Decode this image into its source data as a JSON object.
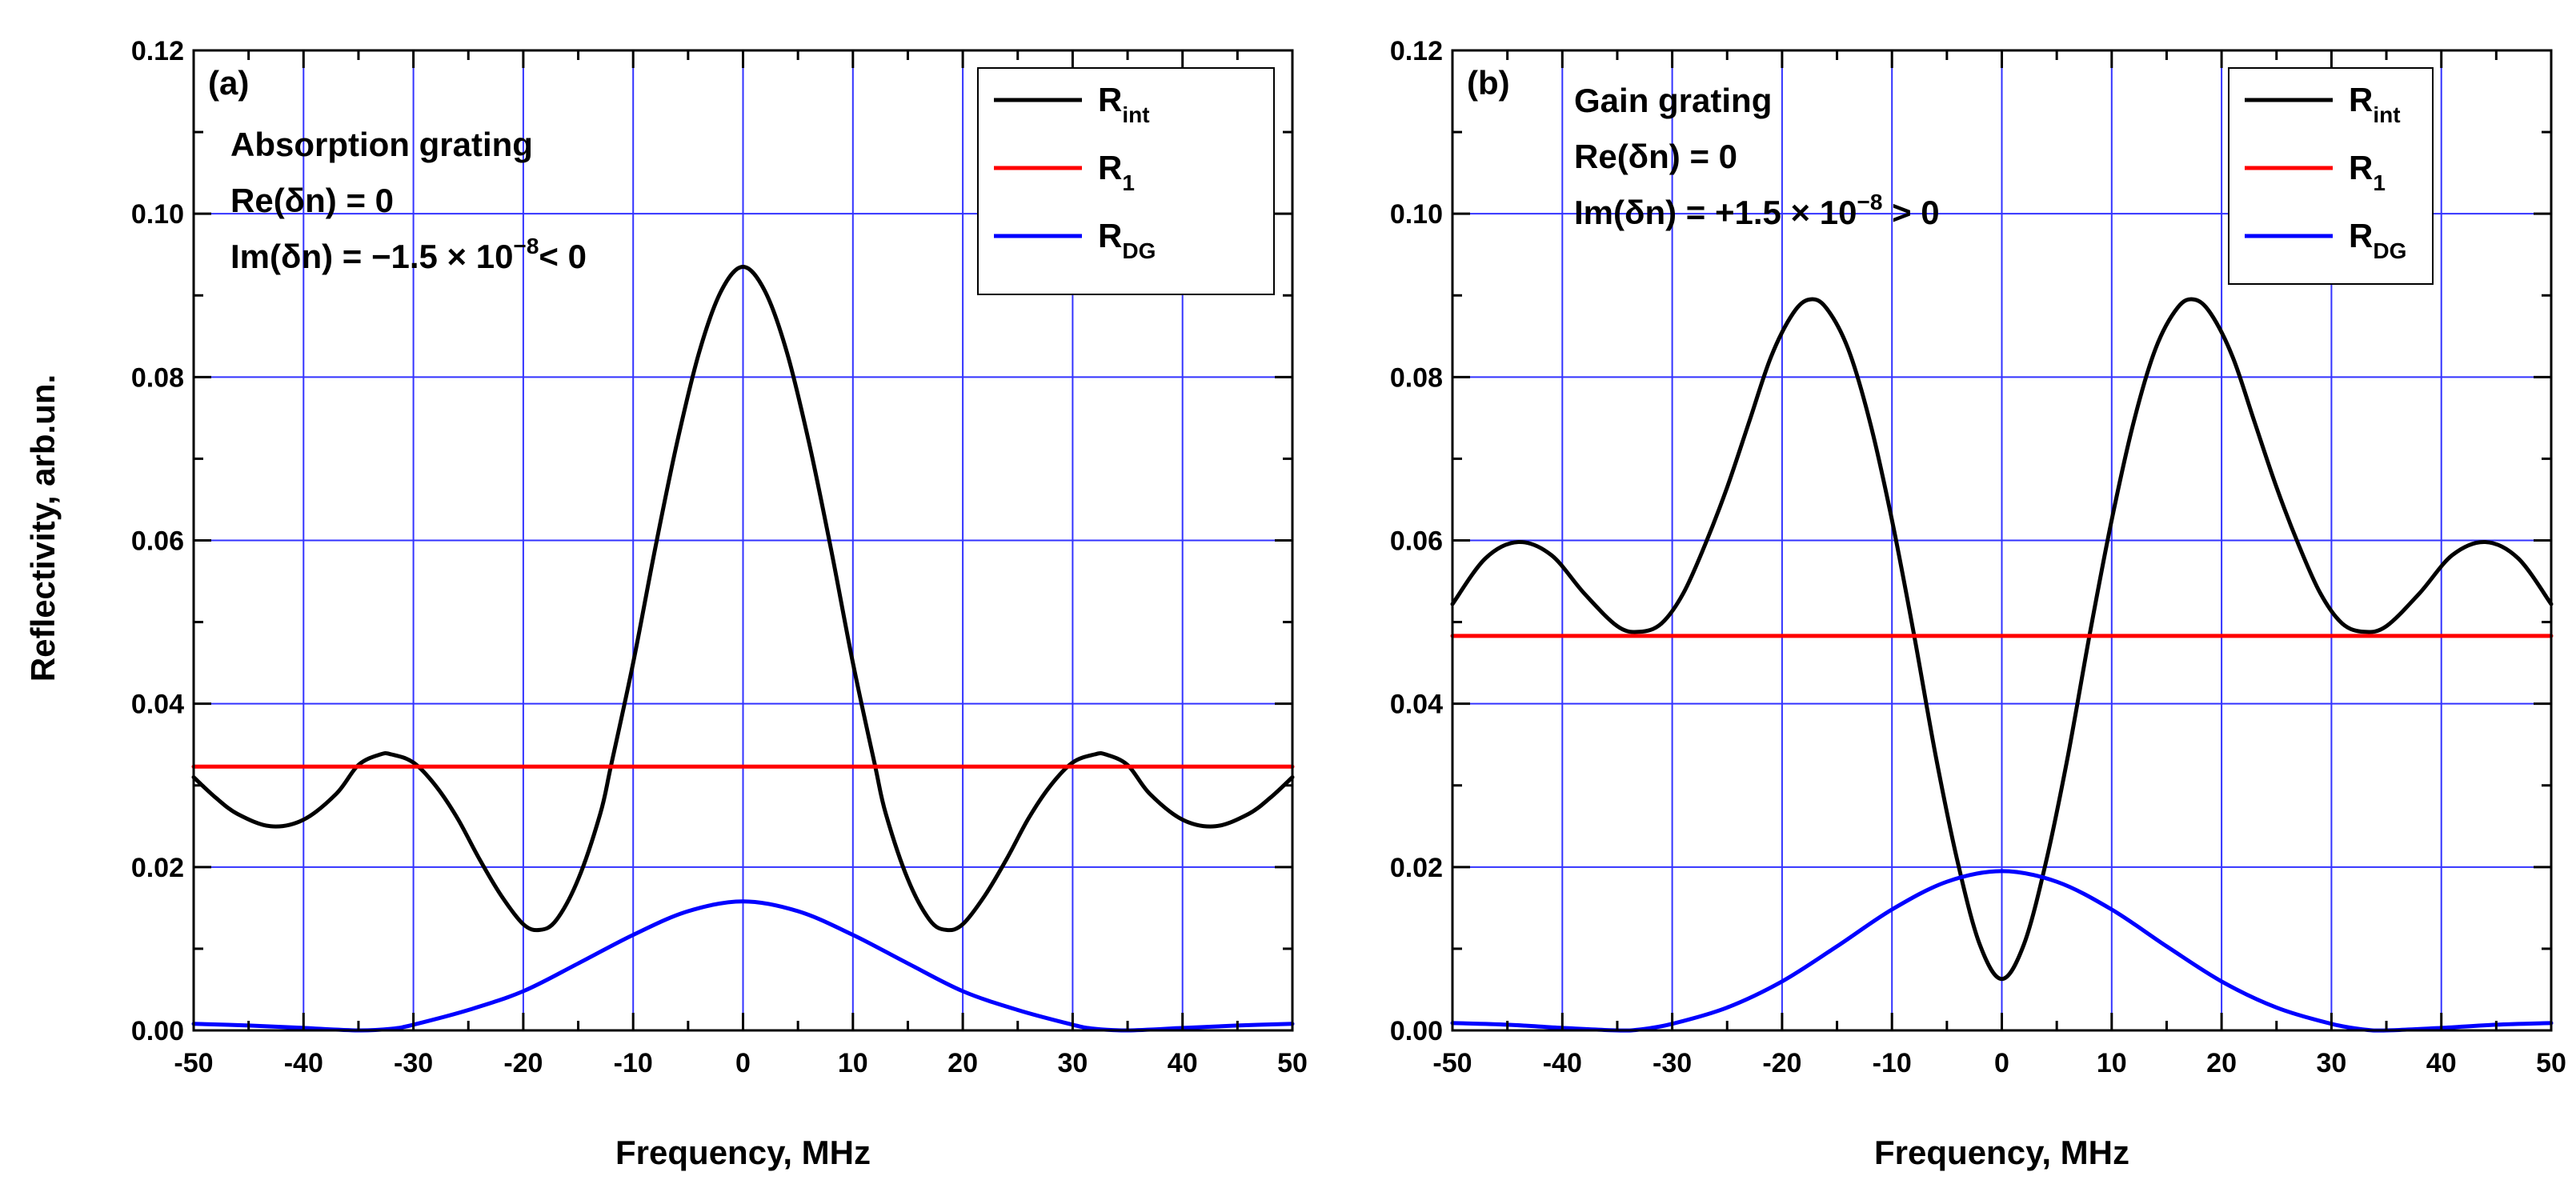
{
  "figure": {
    "ylabel": "Reflectivity, arb.un.",
    "colors": {
      "axes": "#000000",
      "grid": "#3333ff",
      "R_int": "#000000",
      "R_1": "#ff0000",
      "R_DG": "#0000ff"
    }
  },
  "chart_data": [
    {
      "type": "line",
      "panel_label": "(a)",
      "annotation_lines": [
        {
          "text": "Absorption grating"
        },
        {
          "text": "Re(δn) = 0"
        },
        {
          "text": "Im(δn) = −1.5 × 10",
          "sup": "−8",
          "tail": "< 0"
        }
      ],
      "xlabel": "Frequency, MHz",
      "ylabel": "Reflectivity, arb.un.",
      "xlim": [
        -50,
        50
      ],
      "ylim": [
        0,
        0.12
      ],
      "xticks": [
        -50,
        -40,
        -30,
        -20,
        -10,
        0,
        10,
        20,
        30,
        40,
        50
      ],
      "xtick_labels": [
        "-50",
        "-40",
        "-30",
        "-20",
        "-10",
        "0",
        "10",
        "20",
        "30",
        "40",
        "50"
      ],
      "yticks": [
        0,
        0.02,
        0.04,
        0.06,
        0.08,
        0.1,
        0.12
      ],
      "ytick_labels": [
        "0.00",
        "0.02",
        "0.04",
        "0.06",
        "0.08",
        "0.10",
        "0.12"
      ],
      "grid": true,
      "legend_position": "top-right",
      "series": [
        {
          "name": "R_int",
          "label": "R",
          "label_sub": "int",
          "x": [
            -50,
            -48,
            -46,
            -43,
            -40,
            -37,
            -35,
            -33,
            -32,
            -30,
            -28,
            -26,
            -24,
            -22,
            -20,
            -18.5,
            -17,
            -15,
            -13,
            -12,
            -10,
            -8,
            -6,
            -4,
            -2,
            0,
            2,
            4,
            6,
            8,
            10,
            12,
            13,
            15,
            17,
            18.5,
            20,
            22,
            24,
            26,
            28,
            30,
            32,
            33,
            35,
            37,
            40,
            43,
            46,
            48,
            50
          ],
          "y": [
            0.031,
            0.0285,
            0.0265,
            0.025,
            0.0258,
            0.029,
            0.0325,
            0.0338,
            0.0338,
            0.0328,
            0.03,
            0.026,
            0.021,
            0.0165,
            0.013,
            0.0123,
            0.0135,
            0.0185,
            0.0265,
            0.0325,
            0.045,
            0.059,
            0.072,
            0.083,
            0.0905,
            0.0935,
            0.0905,
            0.083,
            0.072,
            0.059,
            0.045,
            0.0325,
            0.0265,
            0.0185,
            0.0135,
            0.0123,
            0.013,
            0.0165,
            0.021,
            0.026,
            0.03,
            0.0328,
            0.0338,
            0.0338,
            0.0325,
            0.029,
            0.0258,
            0.025,
            0.0265,
            0.0285,
            0.031
          ]
        },
        {
          "name": "R_1",
          "label": "R",
          "label_sub": "1",
          "x": [
            -50,
            50
          ],
          "y": [
            0.0323,
            0.0323
          ]
        },
        {
          "name": "R_DG",
          "label": "R",
          "label_sub": "DG",
          "x": [
            -50,
            -45,
            -40,
            -35,
            -32,
            -30,
            -25,
            -20,
            -15,
            -10,
            -5,
            0,
            5,
            10,
            15,
            20,
            25,
            30,
            32,
            35,
            40,
            45,
            50
          ],
          "y": [
            0.0008,
            0.0006,
            0.0003,
            0.0,
            0.0002,
            0.0007,
            0.0025,
            0.0048,
            0.0082,
            0.0117,
            0.0146,
            0.0158,
            0.0146,
            0.0117,
            0.0082,
            0.0048,
            0.0025,
            0.0007,
            0.0002,
            0.0,
            0.0003,
            0.0006,
            0.0008
          ]
        }
      ]
    },
    {
      "type": "line",
      "panel_label": "(b)",
      "annotation_lines": [
        {
          "text": "Gain grating"
        },
        {
          "text": "Re(δn) = 0"
        },
        {
          "text": "Im(δn) = +1.5 × 10",
          "sup": "−8",
          "tail": " > 0"
        }
      ],
      "xlabel": "Frequency, MHz",
      "ylabel": "Reflectivity, arb.un.",
      "xlim": [
        -50,
        50
      ],
      "ylim": [
        0,
        0.12
      ],
      "xticks": [
        -50,
        -40,
        -30,
        -20,
        -10,
        0,
        10,
        20,
        30,
        40,
        50
      ],
      "xtick_labels": [
        "-50",
        "-40",
        "-30",
        "-20",
        "-10",
        "0",
        "10",
        "20",
        "30",
        "40",
        "50"
      ],
      "yticks": [
        0,
        0.02,
        0.04,
        0.06,
        0.08,
        0.1,
        0.12
      ],
      "ytick_labels": [
        "0.00",
        "0.02",
        "0.04",
        "0.06",
        "0.08",
        "0.10",
        "0.12"
      ],
      "grid": true,
      "legend_position": "top-right",
      "series": [
        {
          "name": "R_int",
          "label": "R",
          "label_sub": "int",
          "x": [
            -50,
            -47,
            -44,
            -41,
            -38,
            -35,
            -33,
            -31,
            -29,
            -27,
            -25,
            -23,
            -21,
            -19,
            -17.5,
            -16,
            -14,
            -12,
            -10,
            -8,
            -6,
            -4,
            -2,
            0,
            2,
            4,
            6,
            8,
            10,
            12,
            14,
            16,
            17.5,
            19,
            21,
            23,
            25,
            27,
            29,
            31,
            33,
            35,
            38,
            41,
            44,
            47,
            50
          ],
          "y": [
            0.0522,
            0.0578,
            0.0598,
            0.0582,
            0.0535,
            0.0495,
            0.0488,
            0.0498,
            0.0535,
            0.0595,
            0.0665,
            0.0745,
            0.0825,
            0.0878,
            0.0895,
            0.0885,
            0.0835,
            0.0745,
            0.0625,
            0.0485,
            0.0335,
            0.0205,
            0.0105,
            0.0063,
            0.0105,
            0.0205,
            0.0335,
            0.0485,
            0.0625,
            0.0745,
            0.0835,
            0.0885,
            0.0895,
            0.0878,
            0.0825,
            0.0745,
            0.0665,
            0.0595,
            0.0535,
            0.0498,
            0.0488,
            0.0495,
            0.0535,
            0.0582,
            0.0598,
            0.0578,
            0.0522
          ]
        },
        {
          "name": "R_1",
          "label": "R",
          "label_sub": "1",
          "x": [
            -50,
            50
          ],
          "y": [
            0.0483,
            0.0483
          ]
        },
        {
          "name": "R_DG",
          "label": "R",
          "label_sub": "DG",
          "x": [
            -50,
            -45,
            -40,
            -35,
            -33,
            -30,
            -25,
            -20,
            -15,
            -10,
            -5,
            0,
            5,
            10,
            15,
            20,
            25,
            30,
            33,
            35,
            40,
            45,
            50
          ],
          "y": [
            0.0009,
            0.0007,
            0.0003,
            0.0,
            0.0001,
            0.0008,
            0.0028,
            0.006,
            0.0103,
            0.0148,
            0.0182,
            0.0195,
            0.0182,
            0.0148,
            0.0103,
            0.006,
            0.0028,
            0.0008,
            0.0001,
            0.0,
            0.0003,
            0.0007,
            0.0009
          ]
        }
      ]
    }
  ]
}
